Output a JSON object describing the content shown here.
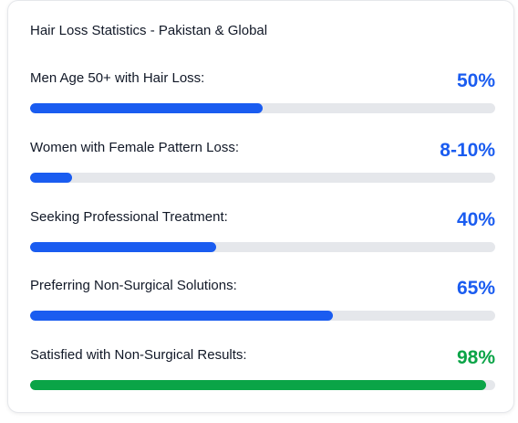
{
  "card": {
    "title": "Hair Loss Statistics - Pakistan & Global"
  },
  "colors": {
    "blue": "#1a5cf0",
    "green": "#0aa447",
    "track": "#e5e7eb"
  },
  "stats": [
    {
      "label": "Men Age 50+ with Hair Loss:",
      "value": "50%",
      "fill_fraction": 0.5,
      "color": "#1a5cf0"
    },
    {
      "label": "Women with Female Pattern Loss:",
      "value": "8-10%",
      "fill_fraction": 0.09,
      "color": "#1a5cf0"
    },
    {
      "label": "Seeking Professional Treatment:",
      "value": "40%",
      "fill_fraction": 0.4,
      "color": "#1a5cf0"
    },
    {
      "label": "Preferring Non-Surgical Solutions:",
      "value": "65%",
      "fill_fraction": 0.65,
      "color": "#1a5cf0"
    },
    {
      "label": "Satisfied with Non-Surgical Results:",
      "value": "98%",
      "fill_fraction": 0.98,
      "color": "#0aa447"
    }
  ]
}
